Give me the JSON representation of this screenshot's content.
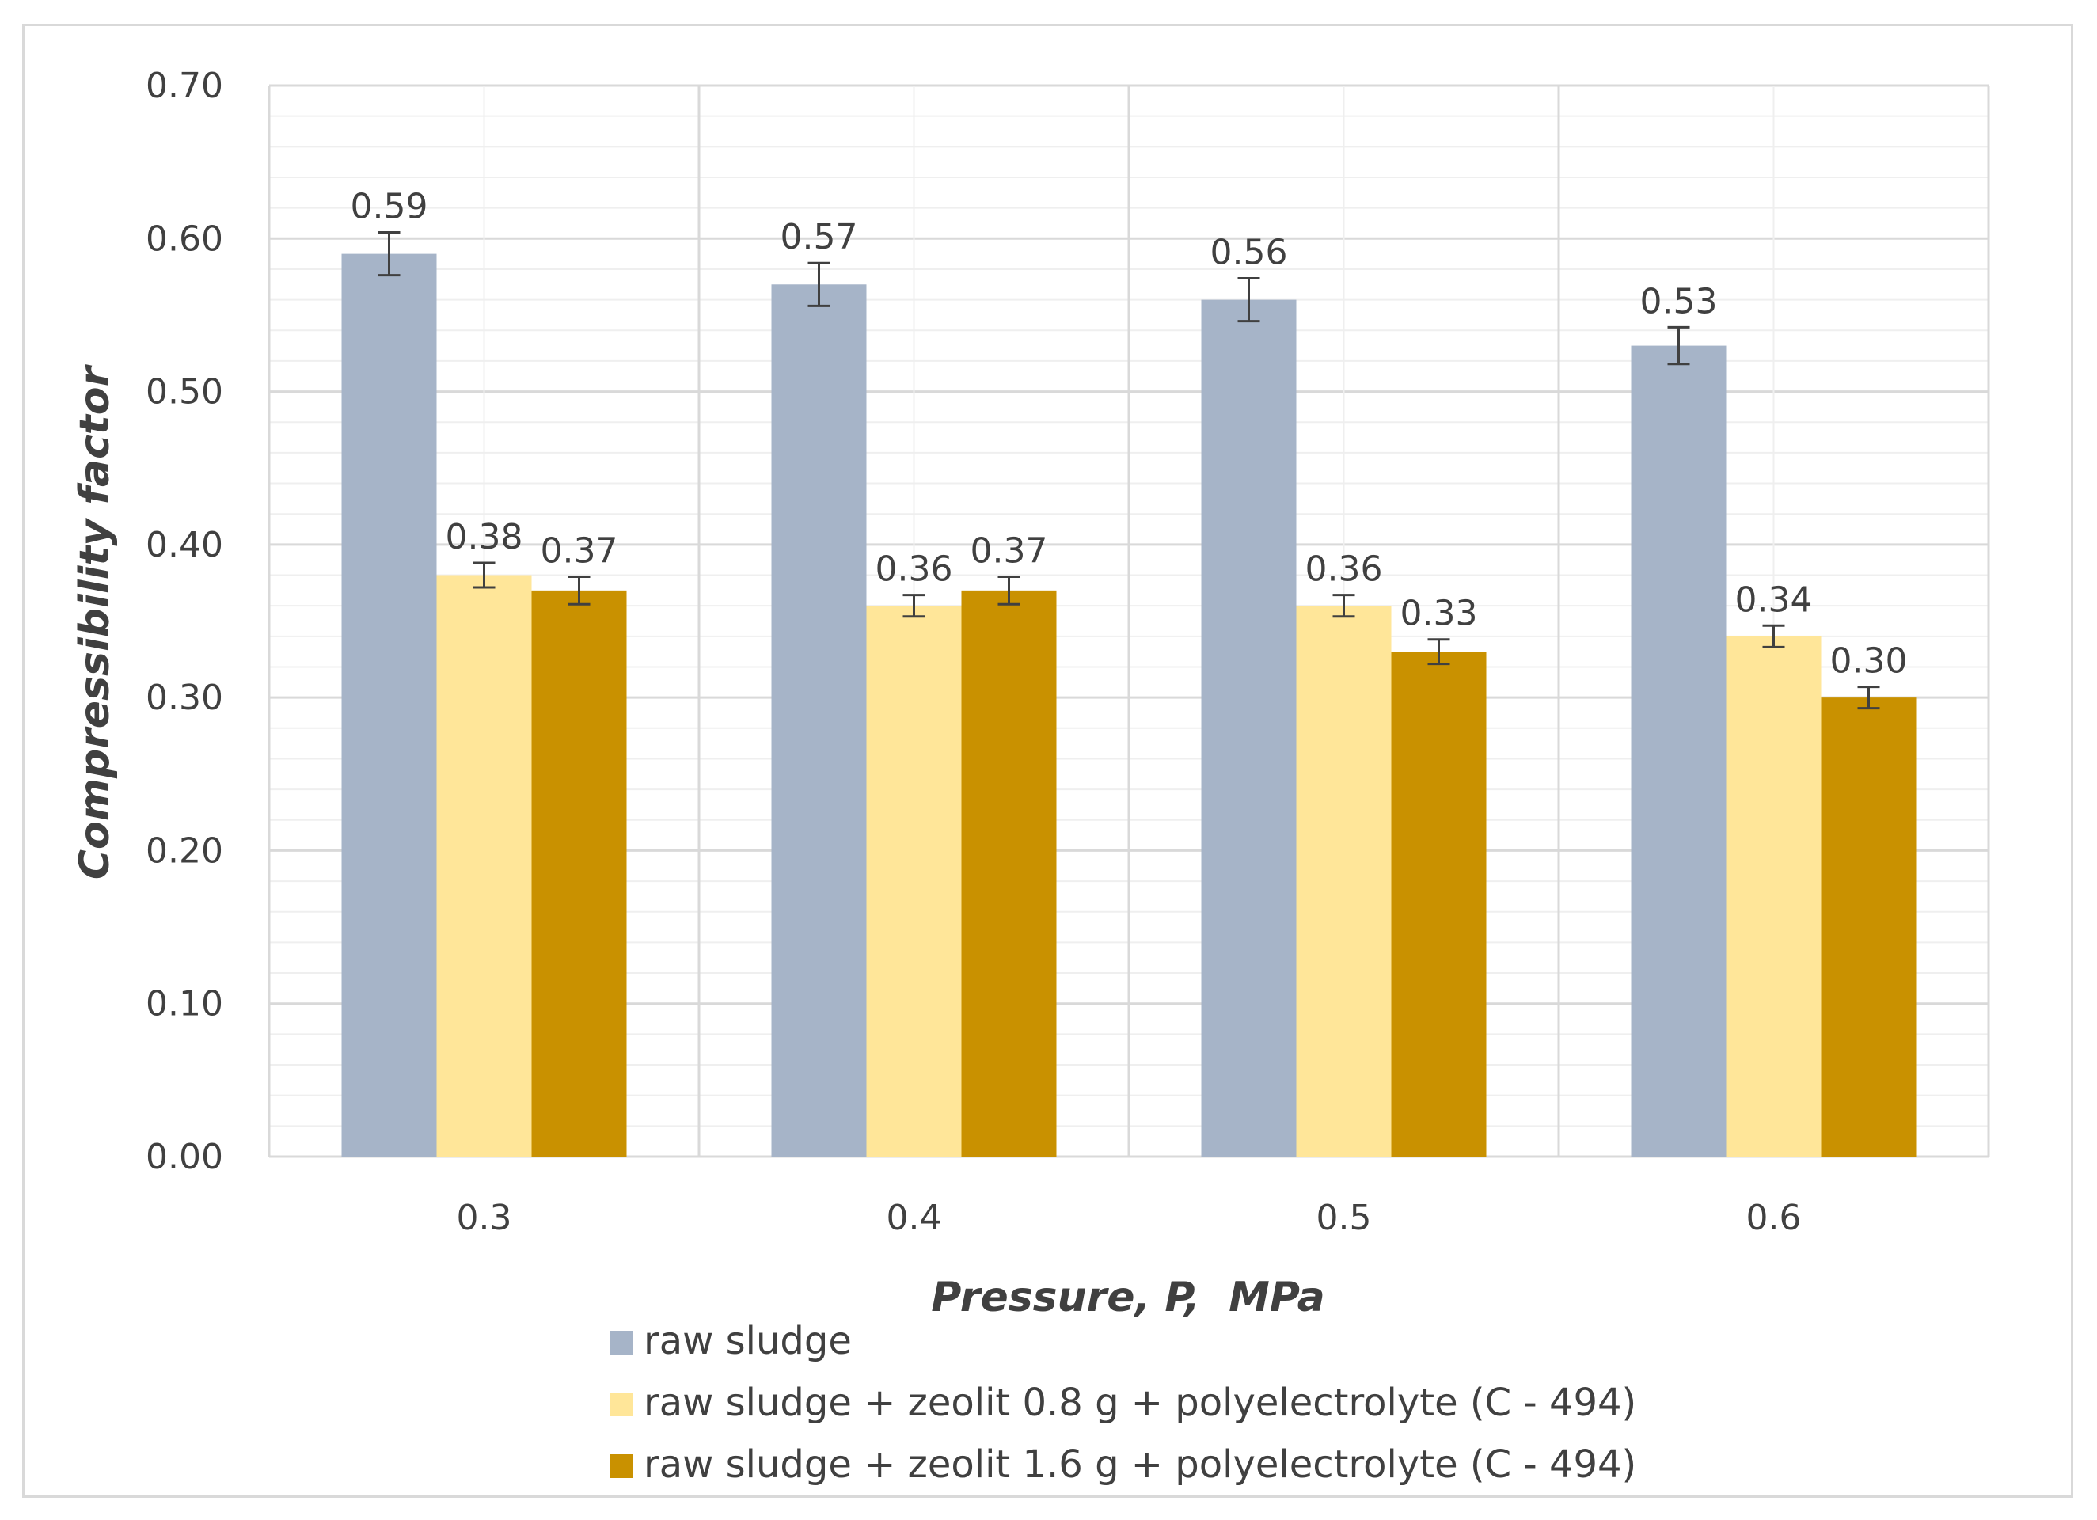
{
  "chart_data": {
    "type": "bar",
    "title": "",
    "xlabel": "Pressure, P,  MPa",
    "ylabel": "Compressibility factor",
    "categories": [
      "0.3",
      "0.4",
      "0.5",
      "0.6"
    ],
    "ylim": [
      0,
      0.7
    ],
    "yticks": [
      "0.00",
      "0.10",
      "0.20",
      "0.30",
      "0.40",
      "0.50",
      "0.60",
      "0.70"
    ],
    "grid": true,
    "legend_position": "bottom",
    "series": [
      {
        "name": "raw sludge",
        "color": "#a6b4c8",
        "values": [
          0.59,
          0.57,
          0.56,
          0.53
        ],
        "labels": [
          "0.59",
          "0.57",
          "0.56",
          "0.53"
        ],
        "errors": [
          0.014,
          0.014,
          0.014,
          0.012
        ]
      },
      {
        "name": "raw sludge + zeolit 0.8 g + polyelectrolyte (C - 494)",
        "color": "#ffe699",
        "values": [
          0.38,
          0.36,
          0.36,
          0.34
        ],
        "labels": [
          "0.38",
          "0.36",
          "0.36",
          "0.34"
        ],
        "errors": [
          0.008,
          0.007,
          0.007,
          0.007
        ]
      },
      {
        "name": "raw sludge + zeolit 1.6 g + polyelectrolyte (C - 494)",
        "color": "#c99100",
        "values": [
          0.37,
          0.37,
          0.33,
          0.3
        ],
        "labels": [
          "0.37",
          "0.37",
          "0.33",
          "0.30"
        ],
        "errors": [
          0.009,
          0.009,
          0.008,
          0.007
        ]
      }
    ]
  }
}
